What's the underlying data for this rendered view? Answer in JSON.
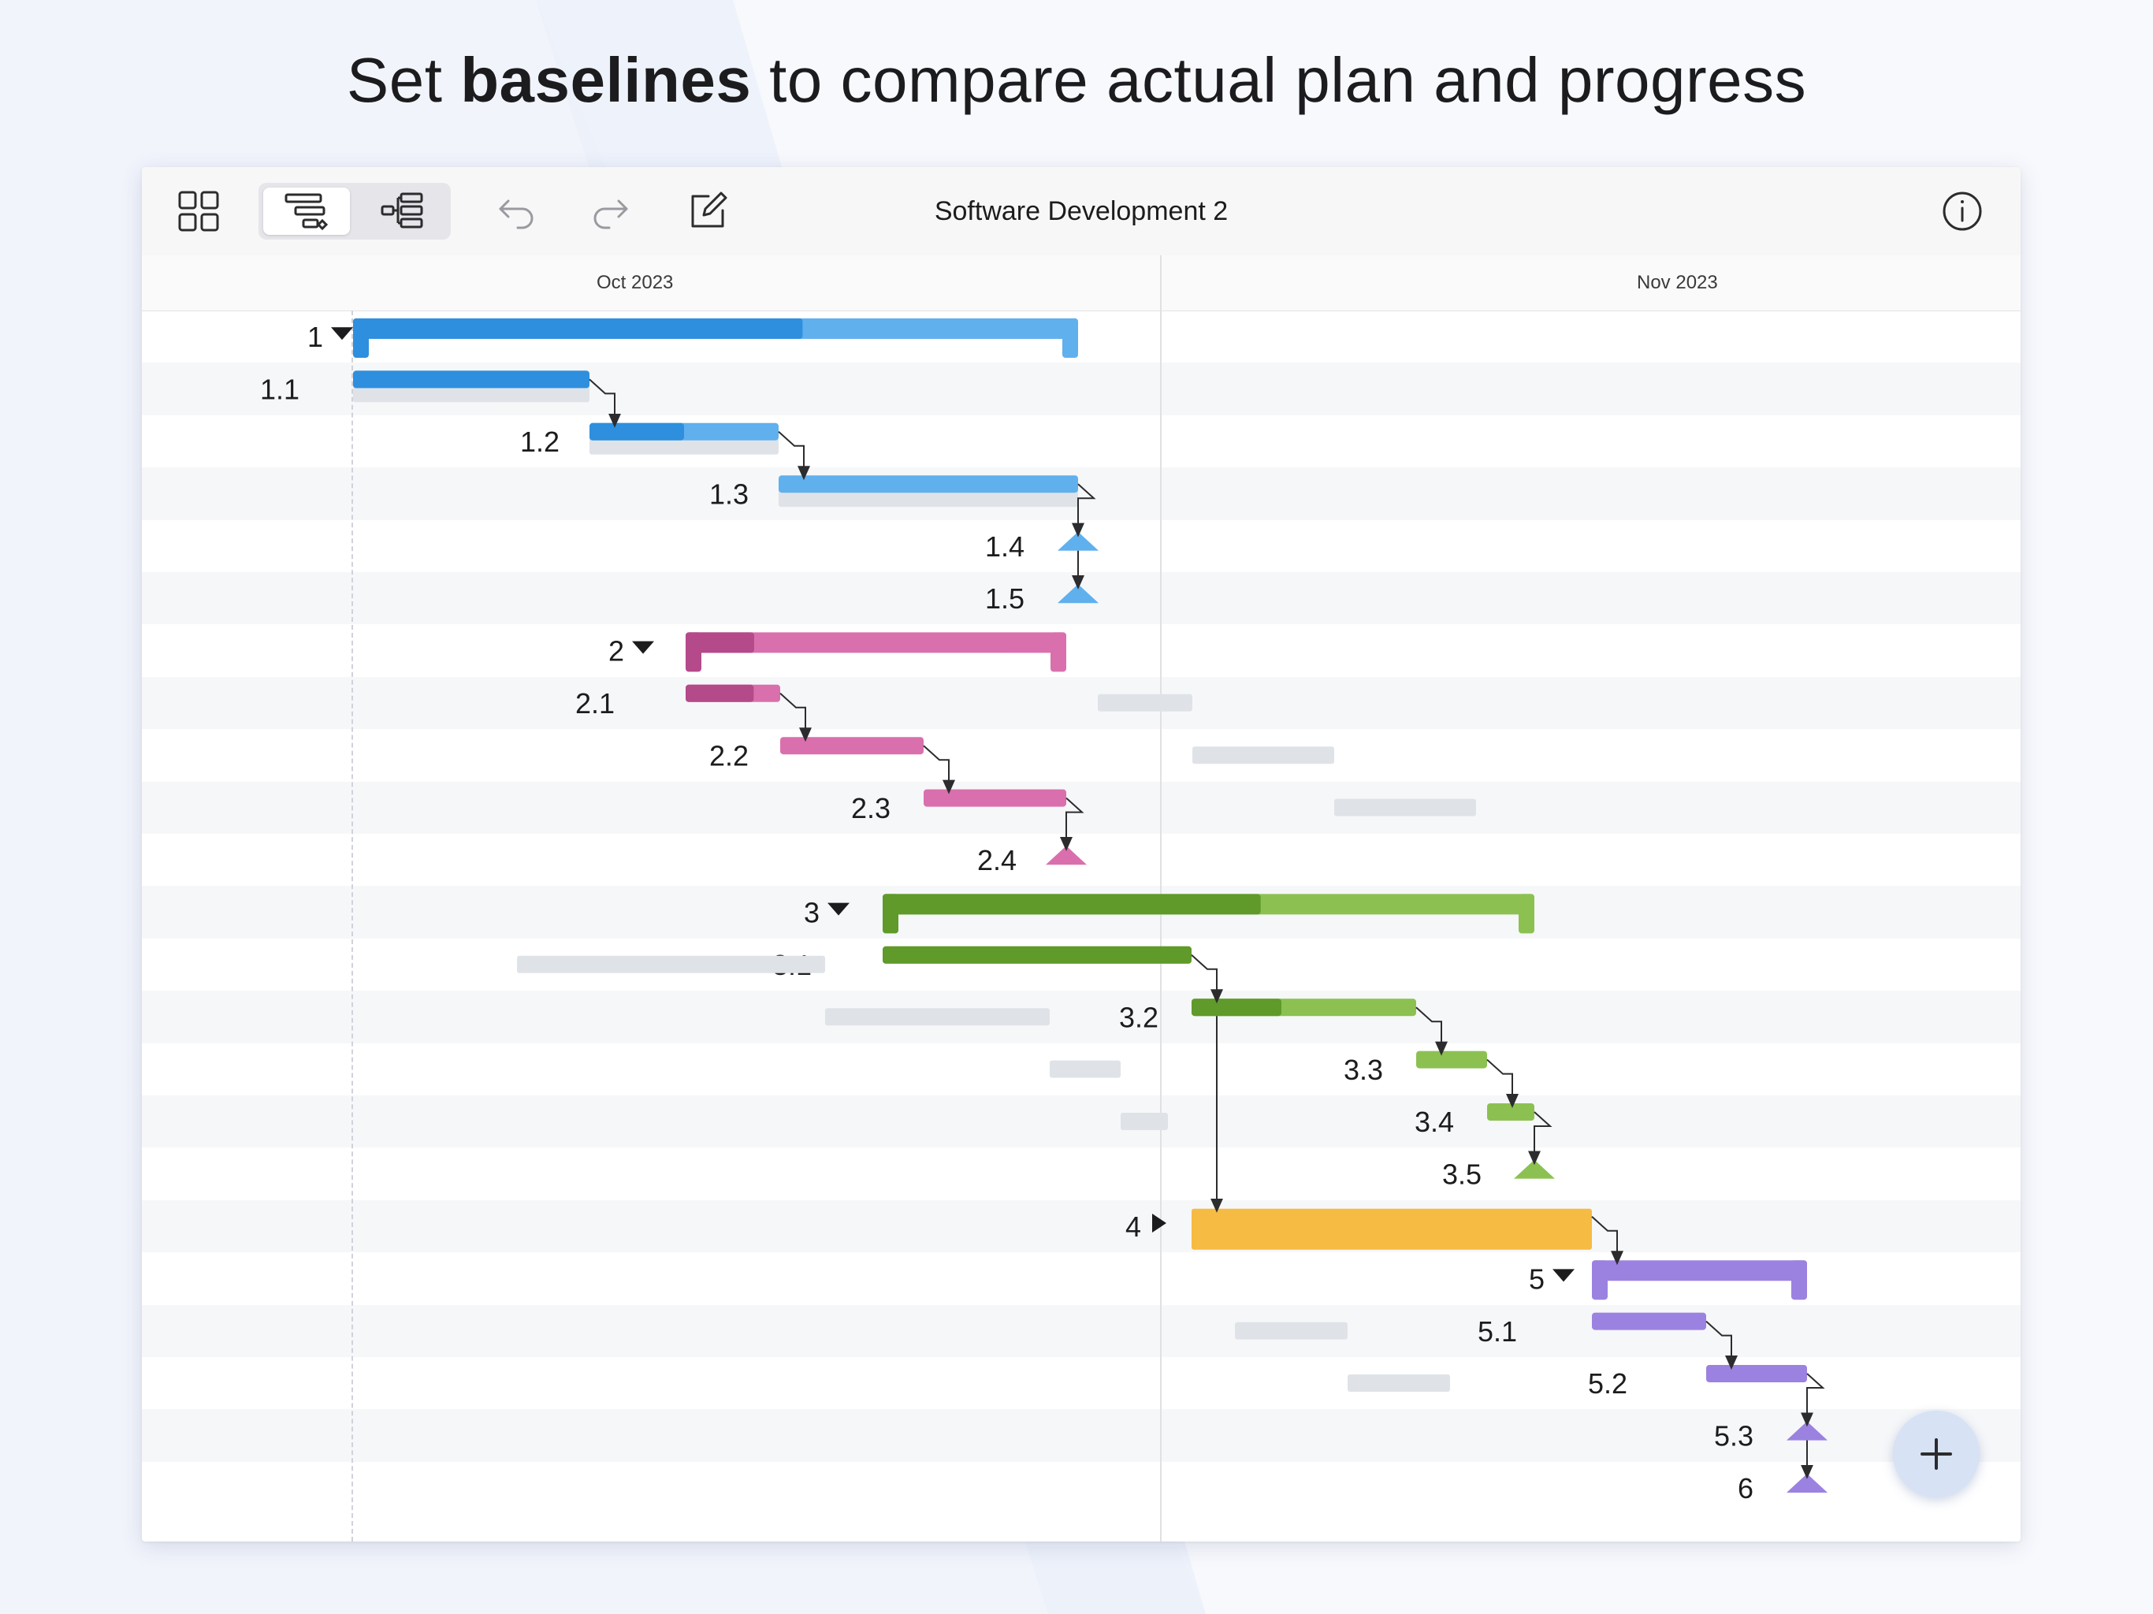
{
  "headline": {
    "before": "Set ",
    "bold": "baselines",
    "after": " to compare actual plan and progress"
  },
  "toolbar": {
    "title": "Software Development 2",
    "icons": [
      "grid-icon",
      "gantt-view-icon",
      "outline-view-icon",
      "undo-icon",
      "redo-icon",
      "edit-icon",
      "info-icon"
    ]
  },
  "timeline": {
    "months": [
      "Oct 2023",
      "Nov 2023"
    ]
  },
  "colors": {
    "blue": "#2e8fde",
    "blue_light": "#60b0ee",
    "pink": "#b44a8a",
    "pink_light": "#d970ad",
    "green": "#5f9a2a",
    "green_light": "#8cc152",
    "orange": "#f6bb43",
    "purple": "#8f75da",
    "purple_light": "#9b82e0",
    "baseline": "#dfe3e8"
  },
  "tasks": [
    {
      "id": "1",
      "kind": "summary",
      "color": "blue",
      "expanded": true
    },
    {
      "id": "1.1",
      "kind": "task",
      "color": "blue",
      "progress": 1.0
    },
    {
      "id": "1.2",
      "kind": "task",
      "color": "blue",
      "progress": 0.5
    },
    {
      "id": "1.3",
      "kind": "task",
      "color": "blue",
      "progress": 0.0
    },
    {
      "id": "1.4",
      "kind": "milestone",
      "color": "blue"
    },
    {
      "id": "1.5",
      "kind": "milestone",
      "color": "blue"
    },
    {
      "id": "2",
      "kind": "summary",
      "color": "pink",
      "expanded": true
    },
    {
      "id": "2.1",
      "kind": "task",
      "color": "pink",
      "progress": 0.72
    },
    {
      "id": "2.2",
      "kind": "task",
      "color": "pink",
      "progress": 0.0
    },
    {
      "id": "2.3",
      "kind": "task",
      "color": "pink",
      "progress": 0.0
    },
    {
      "id": "2.4",
      "kind": "milestone",
      "color": "pink"
    },
    {
      "id": "3",
      "kind": "summary",
      "color": "green",
      "expanded": true
    },
    {
      "id": "3.1",
      "kind": "task",
      "color": "green",
      "progress": 1.0
    },
    {
      "id": "3.2",
      "kind": "task",
      "color": "green",
      "progress": 0.4
    },
    {
      "id": "3.3",
      "kind": "task",
      "color": "green",
      "progress": 0.0
    },
    {
      "id": "3.4",
      "kind": "task",
      "color": "green",
      "progress": 0.0
    },
    {
      "id": "3.5",
      "kind": "milestone",
      "color": "green"
    },
    {
      "id": "4",
      "kind": "summary",
      "color": "orange",
      "expanded": false
    },
    {
      "id": "5",
      "kind": "summary",
      "color": "purple",
      "expanded": true
    },
    {
      "id": "5.1",
      "kind": "task",
      "color": "purple",
      "progress": 0.0
    },
    {
      "id": "5.2",
      "kind": "task",
      "color": "purple",
      "progress": 0.0
    },
    {
      "id": "5.3",
      "kind": "milestone",
      "color": "purple"
    },
    {
      "id": "6",
      "kind": "milestone",
      "color": "purple"
    }
  ],
  "fab": {
    "icon": "plus-icon"
  }
}
